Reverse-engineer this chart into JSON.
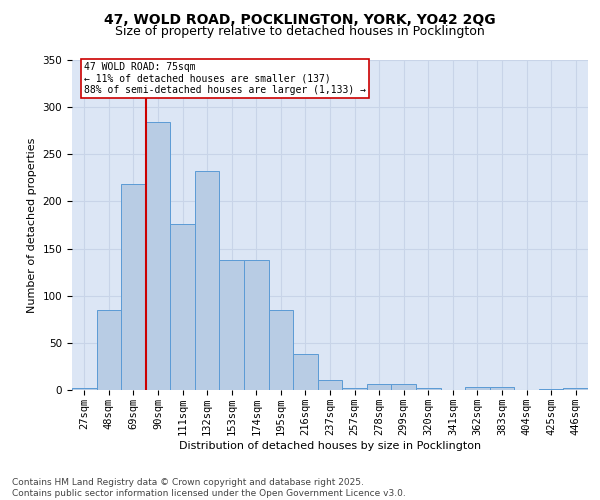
{
  "title_line1": "47, WOLD ROAD, POCKLINGTON, YORK, YO42 2QG",
  "title_line2": "Size of property relative to detached houses in Pocklington",
  "xlabel": "Distribution of detached houses by size in Pocklington",
  "ylabel": "Number of detached properties",
  "categories": [
    "27sqm",
    "48sqm",
    "69sqm",
    "90sqm",
    "111sqm",
    "132sqm",
    "153sqm",
    "174sqm",
    "195sqm",
    "216sqm",
    "237sqm",
    "257sqm",
    "278sqm",
    "299sqm",
    "320sqm",
    "341sqm",
    "362sqm",
    "383sqm",
    "404sqm",
    "425sqm",
    "446sqm"
  ],
  "values": [
    2,
    85,
    219,
    284,
    176,
    232,
    138,
    138,
    85,
    38,
    11,
    2,
    6,
    6,
    2,
    0,
    3,
    3,
    0,
    1,
    2
  ],
  "bar_color": "#b8cce4",
  "bar_edge_color": "#5b9bd5",
  "grid_color": "#c8d4e8",
  "background_color": "#dce6f5",
  "vline_color": "#cc0000",
  "vline_x_idx": 2.5,
  "annotation_text": "47 WOLD ROAD: 75sqm\n← 11% of detached houses are smaller (137)\n88% of semi-detached houses are larger (1,133) →",
  "annotation_box_color": "#ffffff",
  "annotation_box_edge": "#cc0000",
  "ylim": [
    0,
    350
  ],
  "yticks": [
    0,
    50,
    100,
    150,
    200,
    250,
    300,
    350
  ],
  "footer_text": "Contains HM Land Registry data © Crown copyright and database right 2025.\nContains public sector information licensed under the Open Government Licence v3.0.",
  "title_fontsize": 10,
  "subtitle_fontsize": 9,
  "axis_label_fontsize": 8,
  "tick_fontsize": 7.5,
  "footer_fontsize": 6.5
}
